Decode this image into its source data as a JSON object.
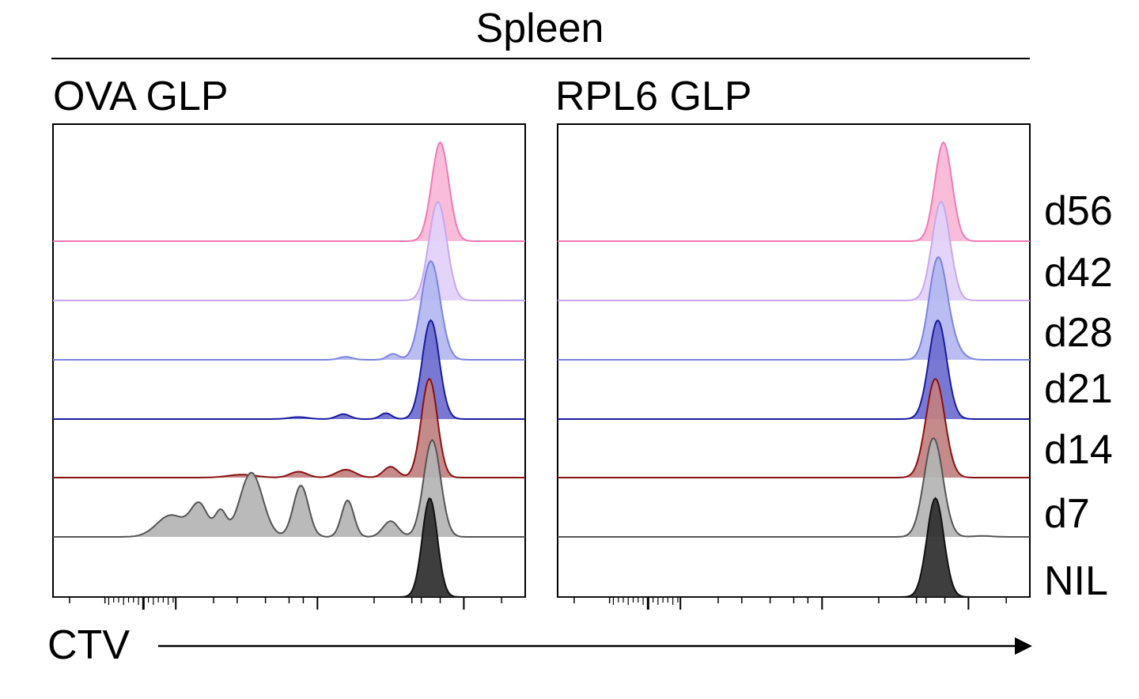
{
  "chart_data": {
    "type": "area",
    "title": "Spleen",
    "xlabel": "CTV",
    "x_scale": "log",
    "xlim": [
      0,
      1
    ],
    "row_labels": [
      "d56",
      "d42",
      "d28",
      "d21",
      "d14",
      "d7",
      "NIL"
    ],
    "series_styles": [
      {
        "label": "d56",
        "line": "#f07ab4",
        "fill": "#f9b6d6"
      },
      {
        "label": "d42",
        "line": "#c8a7ee",
        "fill": "#e2d0f8"
      },
      {
        "label": "d28",
        "line": "#7b83e0",
        "fill": "#b3b7f0"
      },
      {
        "label": "d21",
        "line": "#1a1aa0",
        "fill": "#6e6ed0"
      },
      {
        "label": "d14",
        "line": "#8a1010",
        "fill": "#c08080"
      },
      {
        "label": "d7",
        "line": "#555555",
        "fill": "#b4b4b4"
      },
      {
        "label": "NIL",
        "line": "#111111",
        "fill": "#2e2e2e"
      }
    ],
    "panels": [
      {
        "title": "OVA GLP",
        "series": [
          {
            "label": "d56",
            "peaks": [
              {
                "mu": 0.82,
                "sigma": 0.018,
                "h": 1.0
              }
            ]
          },
          {
            "label": "d42",
            "peaks": [
              {
                "mu": 0.815,
                "sigma": 0.019,
                "h": 1.0
              }
            ]
          },
          {
            "label": "d28",
            "peaks": [
              {
                "mu": 0.8,
                "sigma": 0.02,
                "h": 1.0
              },
              {
                "mu": 0.72,
                "sigma": 0.012,
                "h": 0.06
              },
              {
                "mu": 0.62,
                "sigma": 0.014,
                "h": 0.03
              }
            ]
          },
          {
            "label": "d21",
            "peaks": [
              {
                "mu": 0.8,
                "sigma": 0.018,
                "h": 1.0
              },
              {
                "mu": 0.705,
                "sigma": 0.012,
                "h": 0.06
              },
              {
                "mu": 0.615,
                "sigma": 0.014,
                "h": 0.05
              },
              {
                "mu": 0.52,
                "sigma": 0.02,
                "h": 0.02
              }
            ]
          },
          {
            "label": "d14",
            "peaks": [
              {
                "mu": 0.797,
                "sigma": 0.017,
                "h": 1.0
              },
              {
                "mu": 0.715,
                "sigma": 0.015,
                "h": 0.11
              },
              {
                "mu": 0.62,
                "sigma": 0.02,
                "h": 0.08
              },
              {
                "mu": 0.52,
                "sigma": 0.018,
                "h": 0.06
              },
              {
                "mu": 0.4,
                "sigma": 0.03,
                "h": 0.03
              }
            ]
          },
          {
            "label": "d7",
            "peaks": [
              {
                "mu": 0.803,
                "sigma": 0.018,
                "h": 0.98
              },
              {
                "mu": 0.715,
                "sigma": 0.016,
                "h": 0.16
              },
              {
                "mu": 0.624,
                "sigma": 0.013,
                "h": 0.37
              },
              {
                "mu": 0.525,
                "sigma": 0.016,
                "h": 0.52
              },
              {
                "mu": 0.42,
                "sigma": 0.024,
                "h": 0.65
              },
              {
                "mu": 0.355,
                "sigma": 0.012,
                "h": 0.25
              },
              {
                "mu": 0.31,
                "sigma": 0.018,
                "h": 0.32
              },
              {
                "mu": 0.25,
                "sigma": 0.03,
                "h": 0.22
              }
            ]
          },
          {
            "label": "NIL",
            "peaks": [
              {
                "mu": 0.798,
                "sigma": 0.016,
                "h": 1.0
              }
            ]
          }
        ]
      },
      {
        "title": "RPL6 GLP",
        "series": [
          {
            "label": "d56",
            "peaks": [
              {
                "mu": 0.817,
                "sigma": 0.018,
                "h": 1.0
              }
            ]
          },
          {
            "label": "d42",
            "peaks": [
              {
                "mu": 0.812,
                "sigma": 0.019,
                "h": 1.0
              }
            ]
          },
          {
            "label": "d28",
            "peaks": [
              {
                "mu": 0.805,
                "sigma": 0.019,
                "h": 1.0
              },
              {
                "mu": 0.835,
                "sigma": 0.02,
                "h": 0.12
              }
            ]
          },
          {
            "label": "d21",
            "peaks": [
              {
                "mu": 0.805,
                "sigma": 0.019,
                "h": 1.0
              }
            ]
          },
          {
            "label": "d14",
            "peaks": [
              {
                "mu": 0.8,
                "sigma": 0.02,
                "h": 1.0
              }
            ]
          },
          {
            "label": "d7",
            "peaks": [
              {
                "mu": 0.796,
                "sigma": 0.02,
                "h": 1.0
              },
              {
                "mu": 0.9,
                "sigma": 0.02,
                "h": 0.01
              }
            ]
          },
          {
            "label": "NIL",
            "peaks": [
              {
                "mu": 0.8,
                "sigma": 0.018,
                "h": 1.0
              }
            ]
          }
        ]
      }
    ]
  }
}
